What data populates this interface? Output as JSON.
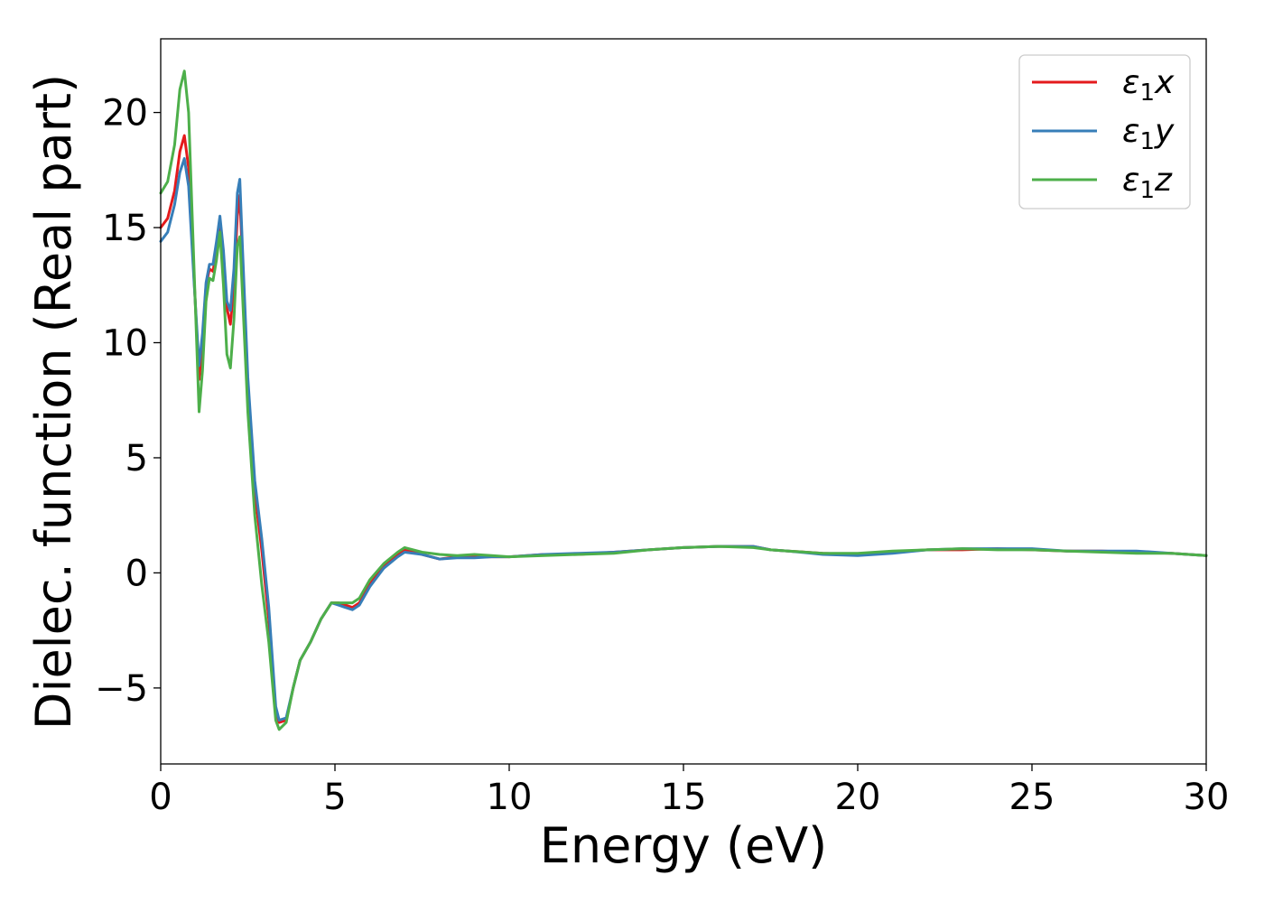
{
  "chart_data": {
    "type": "line",
    "title": "",
    "xlabel": "Energy (eV)",
    "ylabel": "Dielec. function (Real part)",
    "xlim": [
      0,
      30
    ],
    "ylim": [
      -8.3,
      23.2
    ],
    "xticks": [
      0,
      5,
      10,
      15,
      20,
      25,
      30
    ],
    "xtick_labels": [
      "0",
      "5",
      "10",
      "15",
      "20",
      "25",
      "30"
    ],
    "yticks": [
      -5,
      0,
      5,
      10,
      15,
      20
    ],
    "ytick_labels": [
      "−5",
      "0",
      "5",
      "10",
      "15",
      "20"
    ],
    "grid": false,
    "legend_position": "top-right",
    "series": [
      {
        "name": "ε₁x",
        "legend_main": "ε",
        "legend_sub": "1",
        "legend_tail": "x",
        "color": "#e41a1c",
        "points": [
          [
            0,
            15
          ],
          [
            0.2,
            15.4
          ],
          [
            0.4,
            16.6
          ],
          [
            0.55,
            18.3
          ],
          [
            0.68,
            19.0
          ],
          [
            0.8,
            17.6
          ],
          [
            0.95,
            13.0
          ],
          [
            1.1,
            8.4
          ],
          [
            1.2,
            10.0
          ],
          [
            1.3,
            12.5
          ],
          [
            1.4,
            13.2
          ],
          [
            1.5,
            13.1
          ],
          [
            1.6,
            14.0
          ],
          [
            1.7,
            15.3
          ],
          [
            1.8,
            13.8
          ],
          [
            1.9,
            11.5
          ],
          [
            2.0,
            10.8
          ],
          [
            2.1,
            12.5
          ],
          [
            2.2,
            15.5
          ],
          [
            2.27,
            16.4
          ],
          [
            2.35,
            13.5
          ],
          [
            2.5,
            8.0
          ],
          [
            2.7,
            3.5
          ],
          [
            2.9,
            1.0
          ],
          [
            3.1,
            -2.0
          ],
          [
            3.3,
            -6.0
          ],
          [
            3.4,
            -6.5
          ],
          [
            3.6,
            -6.4
          ],
          [
            3.8,
            -5.0
          ],
          [
            4.0,
            -3.8
          ],
          [
            4.3,
            -3.0
          ],
          [
            4.6,
            -2.0
          ],
          [
            4.9,
            -1.3
          ],
          [
            5.1,
            -1.3
          ],
          [
            5.3,
            -1.4
          ],
          [
            5.5,
            -1.5
          ],
          [
            5.7,
            -1.3
          ],
          [
            6.0,
            -0.5
          ],
          [
            6.4,
            0.3
          ],
          [
            6.8,
            0.8
          ],
          [
            7.0,
            1.0
          ],
          [
            7.5,
            0.8
          ],
          [
            8.0,
            0.6
          ],
          [
            8.5,
            0.7
          ],
          [
            9.0,
            0.7
          ],
          [
            9.5,
            0.7
          ],
          [
            10,
            0.7
          ],
          [
            11,
            0.8
          ],
          [
            12,
            0.8
          ],
          [
            13,
            0.9
          ],
          [
            14,
            1.0
          ],
          [
            15,
            1.1
          ],
          [
            16,
            1.15
          ],
          [
            17,
            1.15
          ],
          [
            17.5,
            1.0
          ],
          [
            18,
            0.95
          ],
          [
            19,
            0.85
          ],
          [
            20,
            0.8
          ],
          [
            21,
            0.9
          ],
          [
            22,
            1.0
          ],
          [
            23,
            1.0
          ],
          [
            24,
            1.05
          ],
          [
            25,
            1.0
          ],
          [
            26,
            0.95
          ],
          [
            27,
            0.95
          ],
          [
            28,
            0.9
          ],
          [
            29,
            0.85
          ],
          [
            30,
            0.75
          ]
        ]
      },
      {
        "name": "ε₁y",
        "legend_main": "ε",
        "legend_sub": "1",
        "legend_tail": "y",
        "color": "#377eb8",
        "points": [
          [
            0,
            14.4
          ],
          [
            0.2,
            14.8
          ],
          [
            0.4,
            16.0
          ],
          [
            0.55,
            17.4
          ],
          [
            0.68,
            18.0
          ],
          [
            0.8,
            16.8
          ],
          [
            0.95,
            12.8
          ],
          [
            1.1,
            9.0
          ],
          [
            1.2,
            10.4
          ],
          [
            1.3,
            12.6
          ],
          [
            1.4,
            13.4
          ],
          [
            1.5,
            13.4
          ],
          [
            1.6,
            14.4
          ],
          [
            1.7,
            15.5
          ],
          [
            1.8,
            14.0
          ],
          [
            1.9,
            11.8
          ],
          [
            2.0,
            11.4
          ],
          [
            2.1,
            13.2
          ],
          [
            2.2,
            16.5
          ],
          [
            2.27,
            17.1
          ],
          [
            2.35,
            14.0
          ],
          [
            2.5,
            8.5
          ],
          [
            2.7,
            4.0
          ],
          [
            2.9,
            1.5
          ],
          [
            3.1,
            -1.5
          ],
          [
            3.3,
            -5.8
          ],
          [
            3.4,
            -6.4
          ],
          [
            3.6,
            -6.3
          ],
          [
            3.8,
            -5.0
          ],
          [
            4.0,
            -3.8
          ],
          [
            4.3,
            -3.0
          ],
          [
            4.6,
            -2.0
          ],
          [
            4.9,
            -1.3
          ],
          [
            5.1,
            -1.4
          ],
          [
            5.3,
            -1.5
          ],
          [
            5.5,
            -1.6
          ],
          [
            5.7,
            -1.4
          ],
          [
            6.0,
            -0.6
          ],
          [
            6.4,
            0.2
          ],
          [
            6.8,
            0.7
          ],
          [
            7.0,
            0.9
          ],
          [
            7.5,
            0.8
          ],
          [
            8.0,
            0.6
          ],
          [
            8.5,
            0.65
          ],
          [
            9.0,
            0.65
          ],
          [
            9.5,
            0.7
          ],
          [
            10,
            0.7
          ],
          [
            11,
            0.8
          ],
          [
            12,
            0.85
          ],
          [
            13,
            0.9
          ],
          [
            14,
            1.0
          ],
          [
            15,
            1.1
          ],
          [
            16,
            1.15
          ],
          [
            17,
            1.15
          ],
          [
            17.5,
            1.0
          ],
          [
            18,
            0.95
          ],
          [
            19,
            0.8
          ],
          [
            20,
            0.75
          ],
          [
            21,
            0.85
          ],
          [
            22,
            1.0
          ],
          [
            23,
            1.05
          ],
          [
            24,
            1.05
          ],
          [
            25,
            1.05
          ],
          [
            26,
            0.95
          ],
          [
            27,
            0.95
          ],
          [
            28,
            0.95
          ],
          [
            29,
            0.85
          ],
          [
            30,
            0.75
          ]
        ]
      },
      {
        "name": "ε₁z",
        "legend_main": "ε",
        "legend_sub": "1",
        "legend_tail": "z",
        "color": "#4daf4a",
        "points": [
          [
            0,
            16.5
          ],
          [
            0.2,
            17.0
          ],
          [
            0.4,
            18.6
          ],
          [
            0.55,
            21.0
          ],
          [
            0.68,
            21.8
          ],
          [
            0.8,
            20.0
          ],
          [
            0.95,
            13.5
          ],
          [
            1.1,
            7.0
          ],
          [
            1.2,
            8.8
          ],
          [
            1.3,
            11.8
          ],
          [
            1.4,
            12.8
          ],
          [
            1.5,
            12.7
          ],
          [
            1.6,
            13.6
          ],
          [
            1.7,
            14.8
          ],
          [
            1.8,
            12.5
          ],
          [
            1.9,
            9.5
          ],
          [
            2.0,
            8.9
          ],
          [
            2.1,
            11.0
          ],
          [
            2.2,
            14.2
          ],
          [
            2.27,
            14.6
          ],
          [
            2.35,
            12.0
          ],
          [
            2.5,
            7.0
          ],
          [
            2.7,
            2.5
          ],
          [
            2.9,
            -0.5
          ],
          [
            3.1,
            -3.0
          ],
          [
            3.3,
            -6.4
          ],
          [
            3.4,
            -6.8
          ],
          [
            3.6,
            -6.5
          ],
          [
            3.8,
            -5.0
          ],
          [
            4.0,
            -3.8
          ],
          [
            4.3,
            -3.0
          ],
          [
            4.6,
            -2.0
          ],
          [
            4.9,
            -1.3
          ],
          [
            5.1,
            -1.3
          ],
          [
            5.3,
            -1.3
          ],
          [
            5.5,
            -1.3
          ],
          [
            5.7,
            -1.1
          ],
          [
            6.0,
            -0.3
          ],
          [
            6.4,
            0.4
          ],
          [
            6.8,
            0.9
          ],
          [
            7.0,
            1.1
          ],
          [
            7.5,
            0.9
          ],
          [
            8.0,
            0.8
          ],
          [
            8.5,
            0.75
          ],
          [
            9.0,
            0.8
          ],
          [
            9.5,
            0.75
          ],
          [
            10,
            0.7
          ],
          [
            11,
            0.75
          ],
          [
            12,
            0.8
          ],
          [
            13,
            0.85
          ],
          [
            14,
            1.0
          ],
          [
            15,
            1.1
          ],
          [
            16,
            1.15
          ],
          [
            17,
            1.1
          ],
          [
            17.5,
            1.0
          ],
          [
            18,
            0.95
          ],
          [
            19,
            0.85
          ],
          [
            20,
            0.85
          ],
          [
            21,
            0.95
          ],
          [
            22,
            1.0
          ],
          [
            23,
            1.05
          ],
          [
            24,
            1.0
          ],
          [
            25,
            1.0
          ],
          [
            26,
            0.95
          ],
          [
            27,
            0.9
          ],
          [
            28,
            0.85
          ],
          [
            29,
            0.85
          ],
          [
            30,
            0.75
          ]
        ]
      }
    ]
  }
}
